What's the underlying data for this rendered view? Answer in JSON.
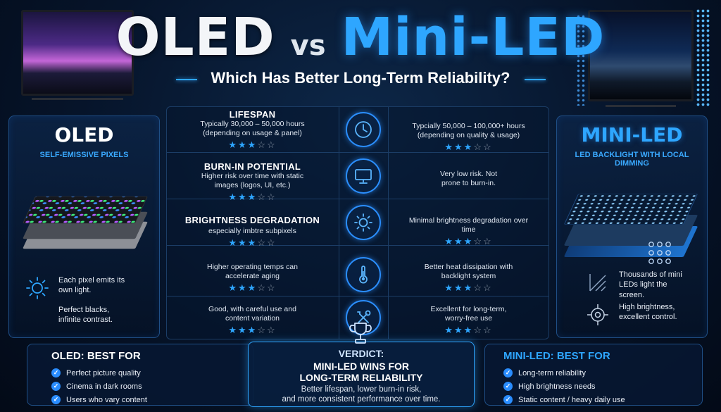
{
  "header": {
    "title_left": "OLED",
    "title_vs": "vs",
    "title_right": "Mini-LED",
    "subtitle": "Which Has Better Long-Term Reliability?"
  },
  "oled_panel": {
    "heading": "OLED",
    "tag": "SELF-EMISSIVE PIXELS",
    "features": [
      {
        "icon": "sun-icon",
        "text": "Each pixel emits its own light."
      },
      {
        "icon": "none",
        "text": "Perfect blacks, infinite contrast."
      }
    ]
  },
  "mini_panel": {
    "heading": "MINI-LED",
    "tag": "LED BACKLIGHT WITH LOCAL DIMMING",
    "features": [
      {
        "icon": "dot-grid-icon",
        "text": "Thousands of mini LEDs light the screen."
      },
      {
        "icon": "crosshair-icon",
        "text": "High brightness, excellent control."
      }
    ]
  },
  "rows": [
    {
      "criterion": "LIFESPAN",
      "oled_desc": "Typically 30,000 – 50,000 hours (depending on usage & panel)",
      "oled_stars": 3,
      "icon": "clock-icon",
      "mini_desc": "Typcially 50,000 – 100,000+ hours (depending on quality & usage)",
      "mini_stars": 3
    },
    {
      "criterion": "BURN-IN POTENTIAL",
      "oled_desc": "Higher risk over time with static images (logos, UI, etc.)",
      "oled_stars": 3,
      "icon": "monitor-icon",
      "mini_desc": "Very low risk. Not prone to burn-in.",
      "mini_stars": 3
    },
    {
      "criterion": "BRIGHTNESS DEGRADATION",
      "oled_desc": "especially imbtre subpixels",
      "oled_stars": 3,
      "icon": "sun-icon",
      "mini_desc": "Minimal brightness degradation over time",
      "mini_stars": 3
    },
    {
      "criterion": "",
      "oled_desc": "Higher operating temps can accelerate aging",
      "oled_stars": 3,
      "icon": "thermometer-icon",
      "mini_desc": "Better heat dissipation with backlight system",
      "mini_stars": 3
    },
    {
      "criterion": "",
      "oled_desc": "Good, with careful use and content variation",
      "oled_stars": 3,
      "icon": "tools-icon",
      "mini_desc": "Excellent for long-term, worry-free use",
      "mini_stars": 3
    }
  ],
  "stars_total": 5,
  "best_oled": {
    "title": "OLED: BEST FOR",
    "items": [
      "Perfect picture quality",
      "Cinema in dark rooms",
      "Users who vary content"
    ]
  },
  "verdict": {
    "label": "VERDICT:",
    "headline_1": "MINI-LED WINS FOR",
    "headline_2": "LONG-TERM RELIABILITY",
    "body_1": "Better lifespan, lower burn-in risk,",
    "body_2": "and more consistent performance over time."
  },
  "best_mini": {
    "title": "MINI-LED: BEST FOR",
    "items": [
      "Long-term reliability",
      "High brightness needs",
      "Static content / heavy daily use"
    ]
  },
  "colors": {
    "accent": "#2ea6ff",
    "star_off": "#8c98a8",
    "background": "#06142a"
  }
}
